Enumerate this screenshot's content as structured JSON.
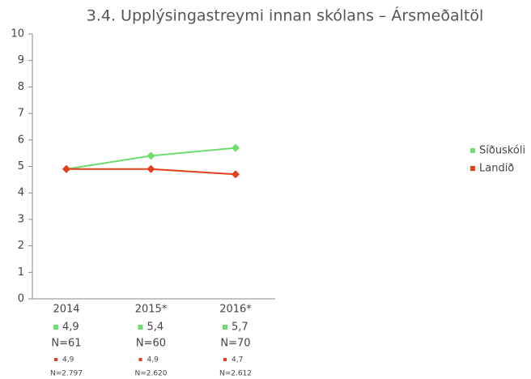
{
  "chart_data": {
    "type": "line",
    "title": "3.4. Upplýsingastreymi innan skólans – Ársmeðaltöl",
    "categories": [
      "2014",
      "2015*",
      "2016*"
    ],
    "series": [
      {
        "name": "Síðuskóli",
        "color": "#6fdc6f",
        "values": [
          4.9,
          5.4,
          5.7
        ],
        "value_labels": [
          "4,9",
          "5,4",
          "5,7"
        ],
        "n": [
          "N=61",
          "N=60",
          "N=70"
        ]
      },
      {
        "name": "Landið",
        "color": "#e2401c",
        "values": [
          4.9,
          4.9,
          4.7
        ],
        "value_labels": [
          "4,9",
          "4,9",
          "4,7"
        ],
        "n": [
          "N=2.797",
          "N=2.620",
          "N=2.612"
        ]
      }
    ],
    "ylim": [
      0,
      10
    ],
    "yticks": [
      0,
      1,
      2,
      3,
      4,
      5,
      6,
      7,
      8,
      9,
      10
    ],
    "grid": false,
    "legend": "right"
  }
}
